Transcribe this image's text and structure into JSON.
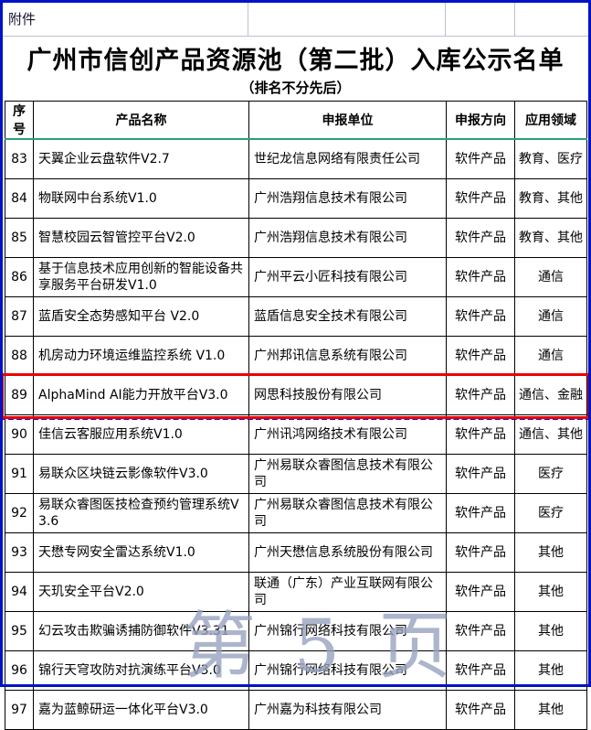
{
  "page": {
    "attachment_label": "附件",
    "title": "广州市信创产品资源池（第二批）入库公示名单",
    "subtitle": "（排名不分先后）",
    "watermark": "第 5 页"
  },
  "table": {
    "columns": [
      "序号",
      "产品名称",
      "申报单位",
      "申报方向",
      "应用领域"
    ],
    "highlighted_row_no": "89",
    "rows": [
      {
        "no": "83",
        "product": "天翼企业云盘软件V2.7",
        "company": "世纪龙信息网络有限责任公司",
        "direction": "软件产品",
        "field": "教育、医疗"
      },
      {
        "no": "84",
        "product": "物联网中台系统V1.0",
        "company": "广州浩翔信息技术有限公司",
        "direction": "软件产品",
        "field": "教育、其他"
      },
      {
        "no": "85",
        "product": "智慧校园云智管控平台V2.0",
        "company": "广州浩翔信息技术有限公司",
        "direction": "软件产品",
        "field": "教育、其他"
      },
      {
        "no": "86",
        "product": "基于信息技术应用创新的智能设备共享服务平台研发V1.0",
        "company": "广州平云小匠科技有限公司",
        "direction": "软件产品",
        "field": "通信"
      },
      {
        "no": "87",
        "product": "蓝盾安全态势感知平台 V2.0",
        "company": "蓝盾信息安全技术有限公司",
        "direction": "软件产品",
        "field": "通信"
      },
      {
        "no": "88",
        "product": "机房动力环境运维监控系统 V1.0",
        "company": "广州邦讯信息系统有限公司",
        "direction": "软件产品",
        "field": "通信"
      },
      {
        "no": "89",
        "product": "AlphaMind AI能力开放平台V3.0",
        "company": "网思科技股份有限公司",
        "direction": "软件产品",
        "field": "通信、金融"
      },
      {
        "no": "90",
        "product": "佳信云客服应用系统V1.0",
        "company": "广州讯鸿网络技术有限公司",
        "direction": "软件产品",
        "field": "通信、其他"
      },
      {
        "no": "91",
        "product": "易联众区块链云影像软件V3.0",
        "company": "广州易联众睿图信息技术有限公司",
        "direction": "软件产品",
        "field": "医疗"
      },
      {
        "no": "92",
        "product": "易联众睿图医技检查预约管理系统V3.6",
        "company": "广州易联众睿图信息技术有限公司",
        "direction": "软件产品",
        "field": "医疗"
      },
      {
        "no": "93",
        "product": "天懋专网安全雷达系统V1.0",
        "company": "广州天懋信息系统股份有限公司",
        "direction": "软件产品",
        "field": "其他"
      },
      {
        "no": "94",
        "product": "天玑安全平台V2.0",
        "company": "联通（广东）产业互联网有限公司",
        "direction": "软件产品",
        "field": "其他"
      },
      {
        "no": "95",
        "product": "幻云攻击欺骗诱捕防御软件V3.31",
        "company": "广州锦行网络科技有限公司",
        "direction": "软件产品",
        "field": "其他"
      },
      {
        "no": "96",
        "product": "锦行天穹攻防对抗演练平台V3.0",
        "company": "广州锦行网络科技有限公司",
        "direction": "软件产品",
        "field": "其他"
      },
      {
        "no": "97",
        "product": "嘉为蓝鲸研运一体化平台V3.0",
        "company": "广州嘉为科技有限公司",
        "direction": "软件产品",
        "field": "其他"
      }
    ]
  },
  "colors": {
    "frame_blue": "#0013c6",
    "highlight_red": "#ee0000",
    "header_underline_teal": "#26a17b",
    "gridline_gray": "#bdc1cd",
    "watermark_gray": "#98a3c0"
  }
}
